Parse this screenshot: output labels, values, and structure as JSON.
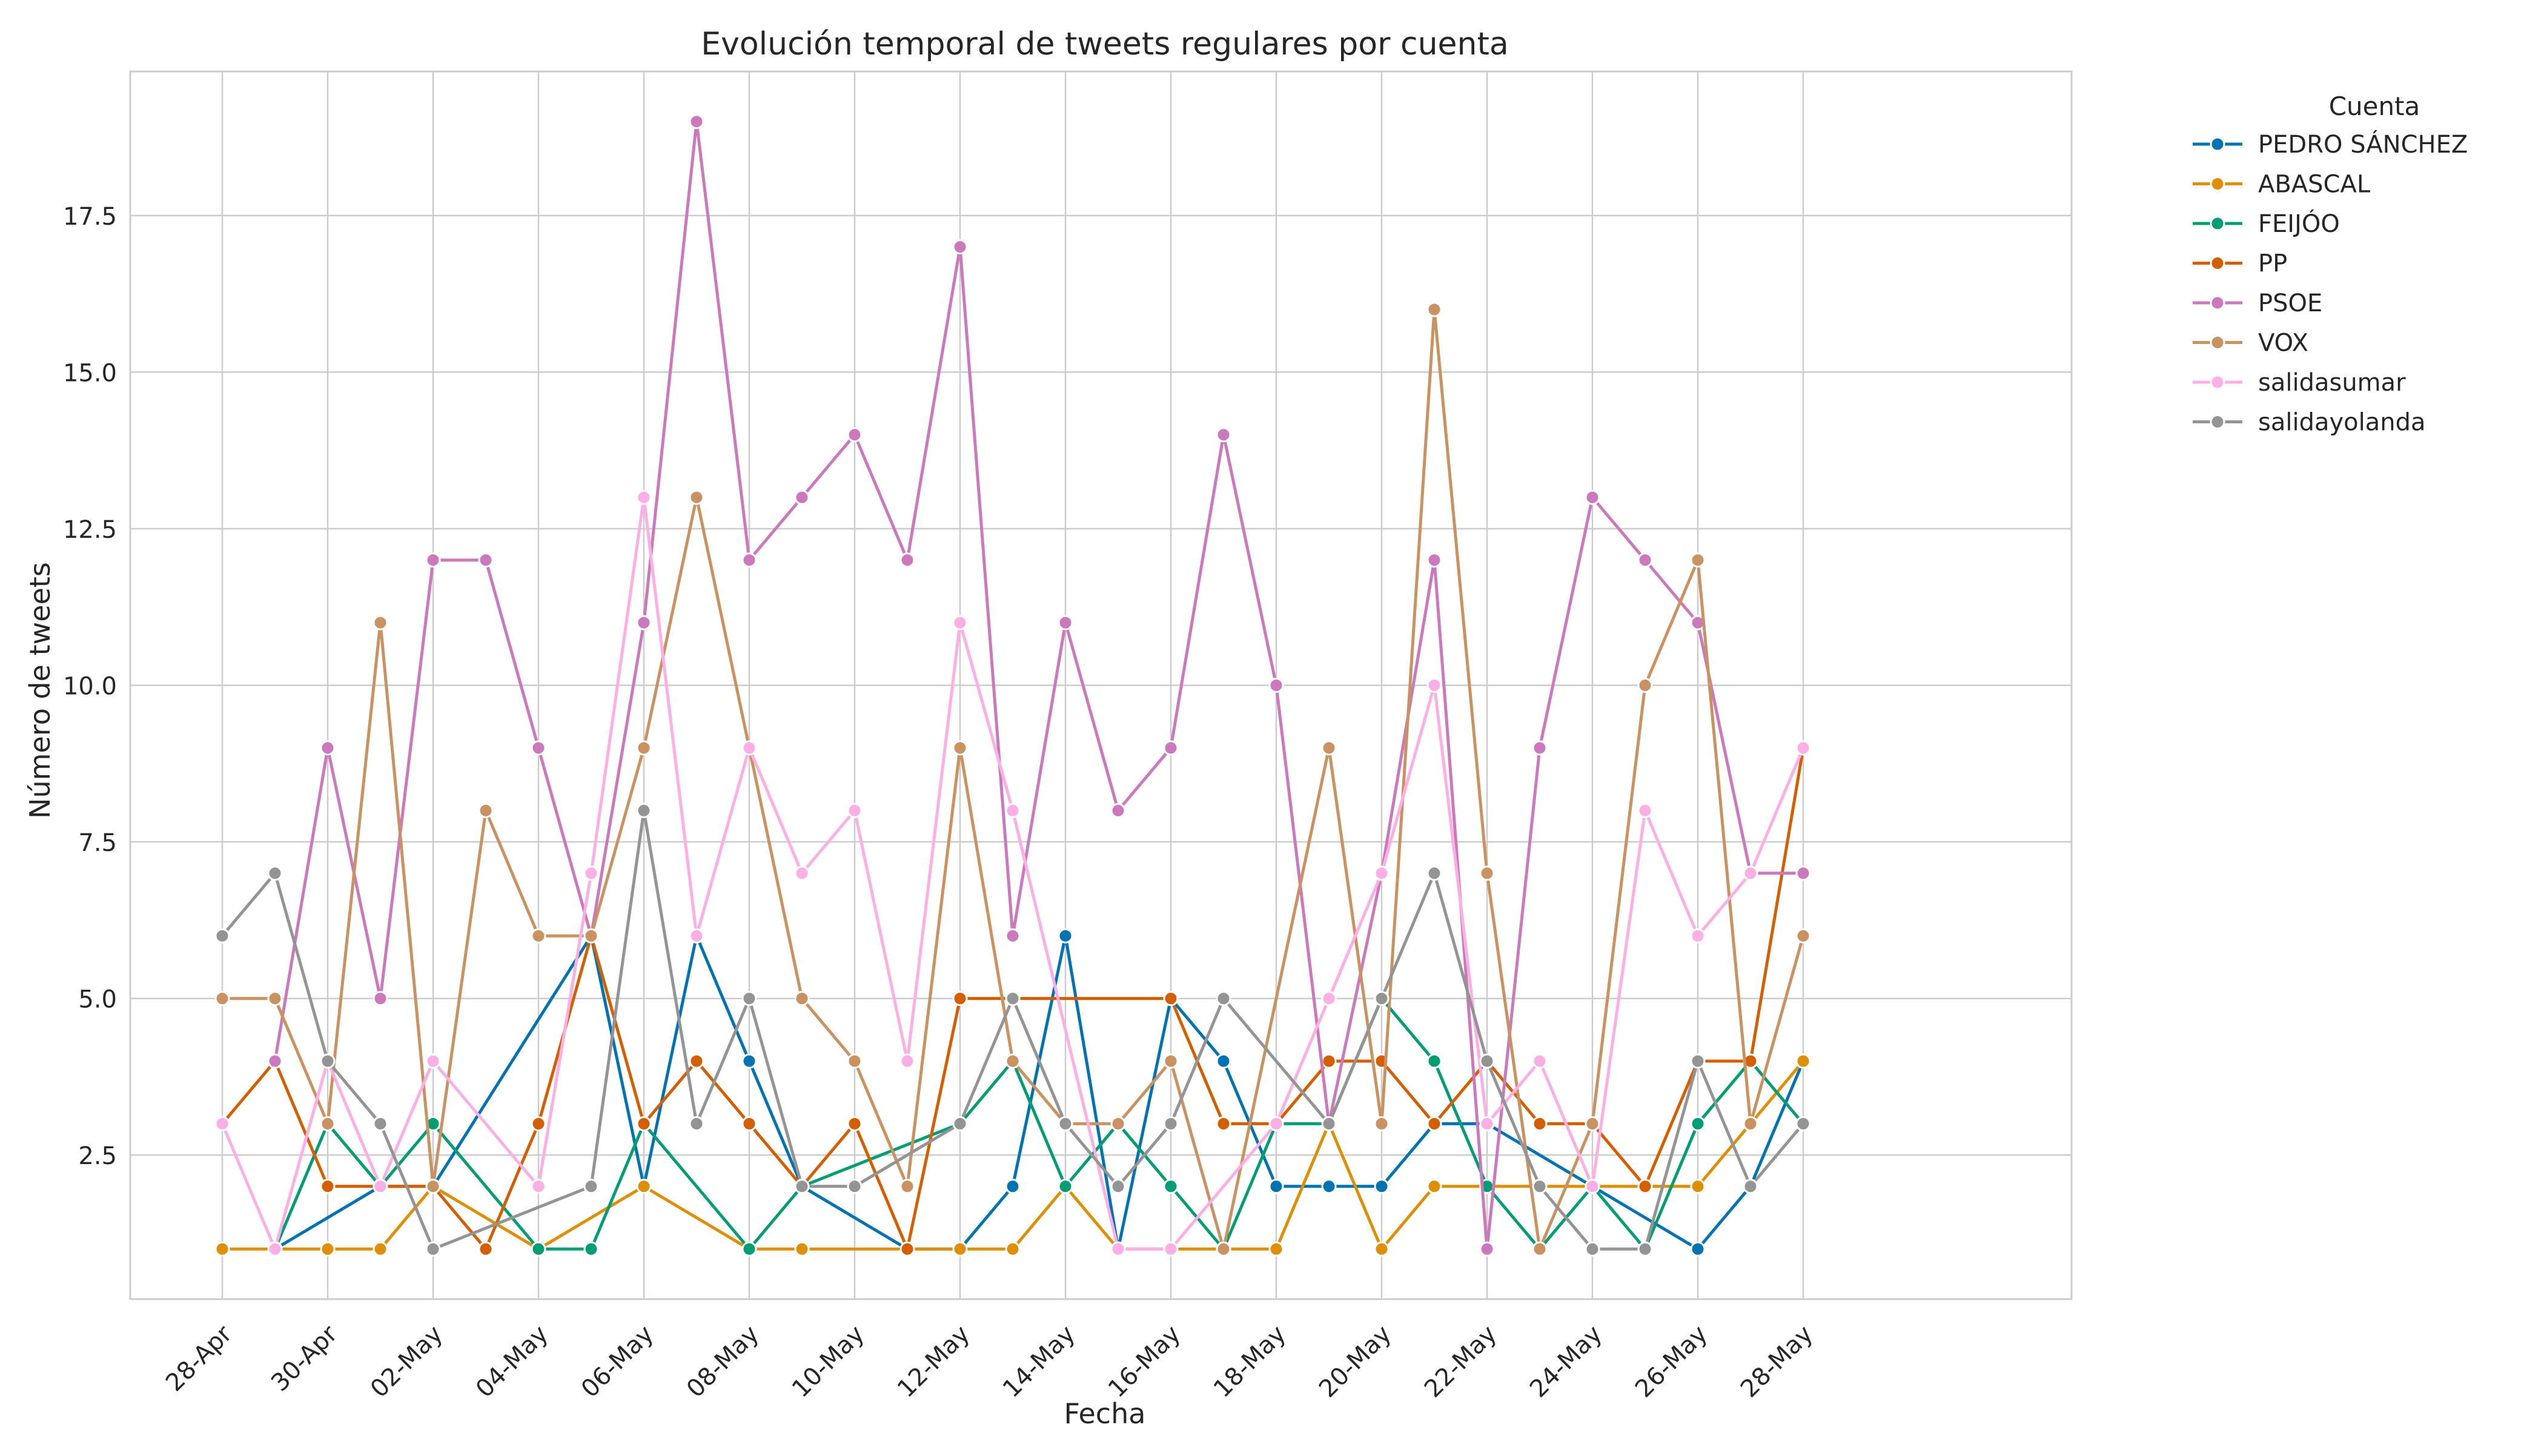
{
  "chart_data": {
    "type": "line",
    "title": "Evolución temporal de tweets regulares por cuenta",
    "xlabel": "Fecha",
    "ylabel": "Número de tweets",
    "x": [
      "28-Apr",
      "29-Apr",
      "30-Apr",
      "01-May",
      "02-May",
      "03-May",
      "04-May",
      "05-May",
      "06-May",
      "07-May",
      "08-May",
      "09-May",
      "10-May",
      "11-May",
      "12-May",
      "13-May",
      "14-May",
      "15-May",
      "16-May",
      "17-May",
      "18-May",
      "19-May",
      "20-May",
      "21-May",
      "22-May",
      "23-May",
      "24-May",
      "25-May",
      "26-May",
      "27-May",
      "28-May"
    ],
    "xticks": [
      "28-Apr",
      "30-Apr",
      "02-May",
      "04-May",
      "06-May",
      "08-May",
      "10-May",
      "12-May",
      "14-May",
      "16-May",
      "18-May",
      "20-May",
      "22-May",
      "24-May",
      "26-May",
      "28-May"
    ],
    "ylim": [
      0.2,
      19.8
    ],
    "yticks": [
      2.5,
      5.0,
      7.5,
      10.0,
      12.5,
      15.0,
      17.5
    ],
    "ytick_labels": [
      "2.5",
      "5.0",
      "7.5",
      "10.0",
      "12.5",
      "15.0",
      "17.5"
    ],
    "grid": true,
    "legend_title": "Cuenta",
    "legend_position": "outside-top-right",
    "series": [
      {
        "name": "PEDRO SÁNCHEZ",
        "color": "#0173b2",
        "values": [
          null,
          1,
          null,
          2,
          2,
          null,
          null,
          6,
          2,
          6,
          4,
          2,
          null,
          1,
          1,
          2,
          6,
          1,
          5,
          4,
          2,
          2,
          2,
          3,
          3,
          null,
          2,
          null,
          1,
          2,
          4
        ]
      },
      {
        "name": "ABASCAL",
        "color": "#de8f05",
        "values": [
          1,
          1,
          1,
          1,
          2,
          null,
          1,
          null,
          2,
          null,
          1,
          1,
          null,
          null,
          1,
          1,
          2,
          1,
          1,
          1,
          1,
          3,
          1,
          2,
          2,
          2,
          2,
          2,
          2,
          3,
          4
        ]
      },
      {
        "name": "FEIJÓO",
        "color": "#029e73",
        "values": [
          null,
          1,
          3,
          2,
          3,
          null,
          1,
          1,
          3,
          null,
          1,
          2,
          null,
          null,
          3,
          4,
          2,
          3,
          2,
          1,
          3,
          3,
          5,
          4,
          2,
          1,
          2,
          1,
          3,
          4,
          3
        ]
      },
      {
        "name": "PP",
        "color": "#d55e00",
        "values": [
          3,
          4,
          2,
          2,
          2,
          1,
          3,
          6,
          3,
          4,
          3,
          2,
          3,
          1,
          5,
          5,
          null,
          null,
          5,
          3,
          3,
          4,
          4,
          3,
          4,
          3,
          3,
          2,
          4,
          4,
          9
        ]
      },
      {
        "name": "PSOE",
        "color": "#cc78bc",
        "values": [
          null,
          4,
          9,
          5,
          12,
          12,
          9,
          6,
          11,
          19,
          12,
          13,
          14,
          12,
          17,
          6,
          11,
          8,
          9,
          14,
          10,
          3,
          7,
          12,
          1,
          9,
          13,
          12,
          11,
          7,
          7
        ]
      },
      {
        "name": "VOX",
        "color": "#ca9161",
        "values": [
          5,
          5,
          3,
          11,
          2,
          8,
          6,
          6,
          9,
          13,
          9,
          5,
          4,
          2,
          9,
          4,
          3,
          3,
          4,
          1,
          null,
          9,
          3,
          16,
          7,
          1,
          3,
          10,
          12,
          3,
          6
        ]
      },
      {
        "name": "salidasumar",
        "color": "#fbafe4",
        "values": [
          3,
          1,
          4,
          2,
          4,
          null,
          2,
          7,
          13,
          6,
          9,
          7,
          8,
          4,
          11,
          8,
          null,
          1,
          1,
          null,
          3,
          5,
          7,
          10,
          3,
          4,
          2,
          8,
          6,
          7,
          9
        ]
      },
      {
        "name": "salidayolanda",
        "color": "#949494",
        "values": [
          6,
          7,
          4,
          3,
          1,
          null,
          null,
          2,
          8,
          3,
          5,
          2,
          2,
          null,
          3,
          5,
          3,
          2,
          3,
          5,
          null,
          3,
          5,
          7,
          4,
          2,
          1,
          1,
          4,
          2,
          3
        ]
      }
    ]
  }
}
